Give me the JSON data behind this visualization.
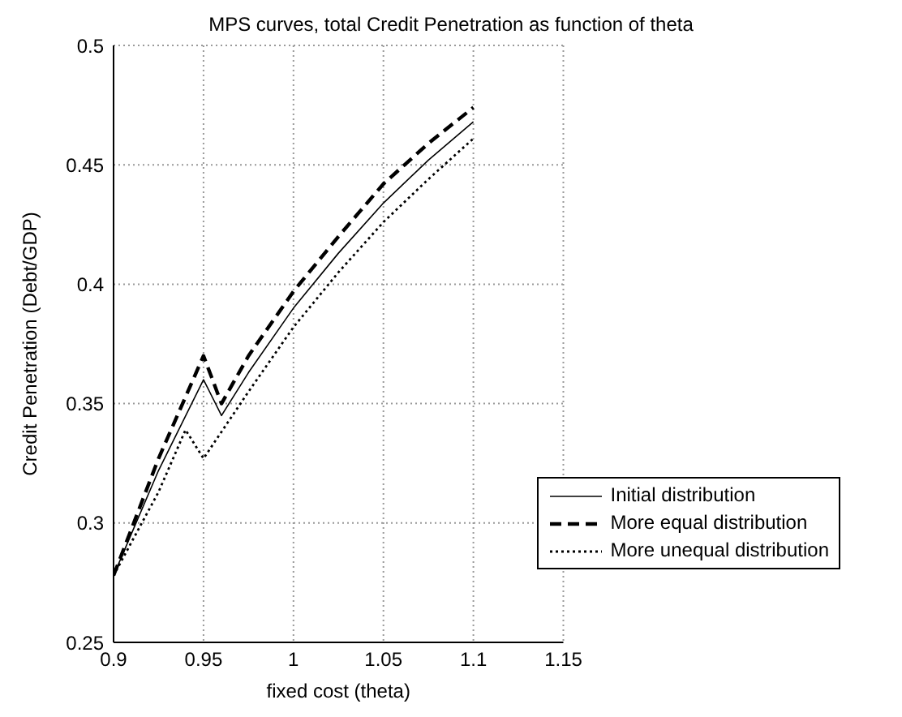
{
  "chart_data": {
    "type": "line",
    "title": "MPS curves, total Credit Penetration as function of theta",
    "xlabel": "fixed cost (theta)",
    "ylabel": "Credit Penetration (Debt/GDP)",
    "xlim": [
      0.9,
      1.15
    ],
    "xticks": [
      0.9,
      0.95,
      1,
      1.05,
      1.1,
      1.15
    ],
    "ylim": [
      0.25,
      0.5
    ],
    "yticks": [
      0.25,
      0.3,
      0.35,
      0.4,
      0.45,
      0.5
    ],
    "grid": true,
    "legend": "right",
    "marker": "none",
    "series": [
      {
        "name": "Initial distribution",
        "color": "#000000",
        "line_style": "solid",
        "x": [
          0.9,
          0.925,
          0.95,
          0.96,
          0.975,
          1,
          1.025,
          1.05,
          1.075,
          1.1
        ],
        "values": [
          0.278,
          0.322,
          0.36,
          0.345,
          0.363,
          0.39,
          0.413,
          0.434,
          0.452,
          0.468
        ]
      },
      {
        "name": "More equal distribution",
        "color": "#000000",
        "line_style": "dashed",
        "x": [
          0.9,
          0.925,
          0.95,
          0.96,
          0.975,
          1,
          1.025,
          1.05,
          1.075,
          1.1
        ],
        "values": [
          0.278,
          0.327,
          0.37,
          0.35,
          0.37,
          0.397,
          0.42,
          0.442,
          0.459,
          0.474
        ]
      },
      {
        "name": "More unequal distribution",
        "color": "#000000",
        "line_style": "dotted",
        "x": [
          0.9,
          0.925,
          0.94,
          0.95,
          0.975,
          1,
          1.025,
          1.05,
          1.075,
          1.1
        ],
        "values": [
          0.278,
          0.313,
          0.339,
          0.327,
          0.355,
          0.382,
          0.405,
          0.426,
          0.444,
          0.461
        ]
      }
    ]
  }
}
